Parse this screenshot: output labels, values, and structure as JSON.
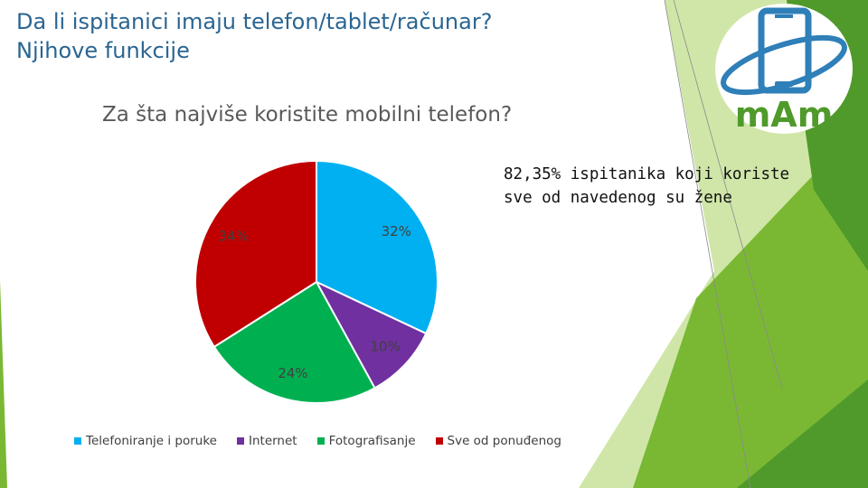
{
  "slide": {
    "title_lines": [
      "Da li ispitanici imaju telefon/tablet/računar?",
      "Njihove funkcije"
    ],
    "note_lines": [
      "82,35% ispitanika koji koriste",
      "sve od navedenog su žene"
    ],
    "logo_text": "mAm"
  },
  "colors": {
    "title": "#2a6592",
    "green_dark": "#4f9a2a",
    "green_mid": "#7ab834",
    "green_light": "#cfe6a8"
  },
  "chart_data": {
    "type": "pie",
    "title": "Za šta najviše koristite mobilni telefon?",
    "legend_position": "bottom",
    "slices": [
      {
        "name": "Telefoniranje i poruke",
        "value": 32,
        "label": "32%",
        "color": "#00b0f0"
      },
      {
        "name": "Internet",
        "value": 10,
        "label": "10%",
        "color": "#7030a0"
      },
      {
        "name": "Fotografisanje",
        "value": 24,
        "label": "24%",
        "color": "#00b050"
      },
      {
        "name": "Sve od ponuđenog",
        "value": 34,
        "label": "34%",
        "color": "#c00000"
      }
    ]
  }
}
